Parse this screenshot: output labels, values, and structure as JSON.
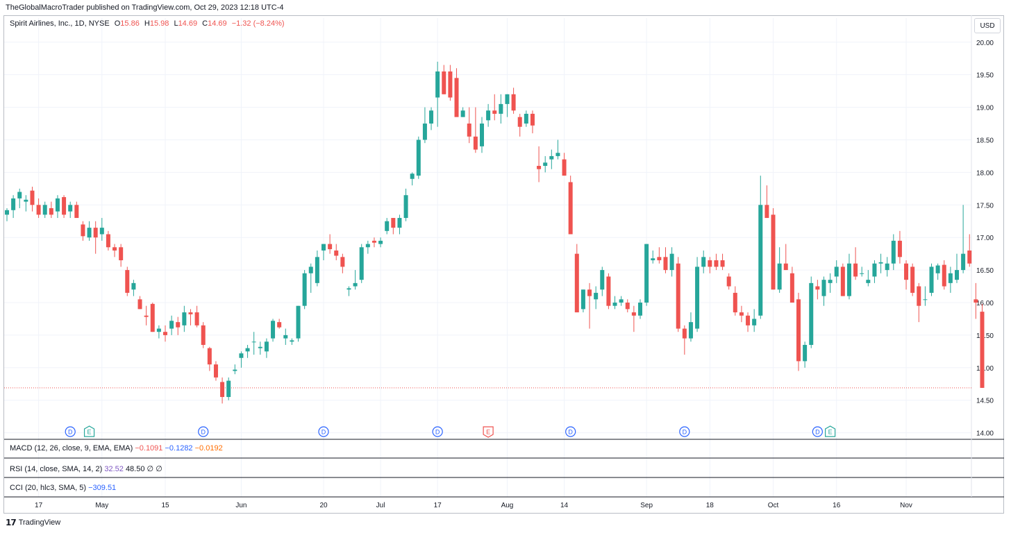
{
  "header": {
    "published": "TheGlobalMacroTrader published on TradingView.com, Oct 29, 2023 12:18 UTC-4"
  },
  "legend": {
    "symbol": "Spirit Airlines, Inc., 1D, NYSE",
    "o_label": "O",
    "o_value": "15.86",
    "h_label": "H",
    "h_value": "15.98",
    "l_label": "L",
    "l_value": "14.69",
    "c_label": "C",
    "c_value": "14.69",
    "change": "−1.32 (−8.24%)"
  },
  "currency": "USD",
  "indicators": {
    "macd": {
      "label": "MACD (12, 26, close, 9, EMA, EMA)",
      "v1": "−0.1091",
      "v2": "−0.1282",
      "v3": "−0.0192"
    },
    "rsi": {
      "label": "RSI (14, close, SMA, 14, 2)",
      "v1": "32.52",
      "v2": "48.50",
      "v3": "∅",
      "v4": "∅"
    },
    "cci": {
      "label": "CCI (20, hlc3, SMA, 5)",
      "v1": "−309.51"
    }
  },
  "footer": {
    "logo_text": "TradingView"
  },
  "colors": {
    "up": "#26a69a",
    "down": "#ef5350",
    "grid": "#f0f3fa",
    "dividend": "#2962ff",
    "earnings_up": "#26a69a",
    "earnings_down": "#ef5350"
  },
  "chart_data": {
    "type": "candlestick",
    "title": "Spirit Airlines, Inc., 1D, NYSE",
    "ylim": [
      13.9,
      20.2
    ],
    "y_ticks": [
      "20.00",
      "19.50",
      "19.00",
      "18.50",
      "18.00",
      "17.50",
      "17.00",
      "16.50",
      "16.00",
      "15.50",
      "15.00",
      "14.50",
      "14.00"
    ],
    "x_ticks": [
      {
        "label": "17",
        "index": 5
      },
      {
        "label": "May",
        "index": 15
      },
      {
        "label": "15",
        "index": 25
      },
      {
        "label": "Jun",
        "index": 37
      },
      {
        "label": "20",
        "index": 50
      },
      {
        "label": "Jul",
        "index": 59
      },
      {
        "label": "17",
        "index": 68
      },
      {
        "label": "Aug",
        "index": 79
      },
      {
        "label": "14",
        "index": 88
      },
      {
        "label": "Sep",
        "index": 101
      },
      {
        "label": "18",
        "index": 111
      },
      {
        "label": "Oct",
        "index": 121
      },
      {
        "label": "16",
        "index": 131
      },
      {
        "label": "Nov",
        "index": 142
      }
    ],
    "last_price": 14.69,
    "candles": [
      [
        17.35,
        17.45,
        17.25,
        17.42
      ],
      [
        17.42,
        17.65,
        17.3,
        17.6
      ],
      [
        17.6,
        17.75,
        17.45,
        17.7
      ],
      [
        17.55,
        17.65,
        17.4,
        17.58
      ],
      [
        17.72,
        17.78,
        17.4,
        17.5
      ],
      [
        17.5,
        17.6,
        17.3,
        17.35
      ],
      [
        17.35,
        17.55,
        17.3,
        17.5
      ],
      [
        17.45,
        17.55,
        17.3,
        17.35
      ],
      [
        17.4,
        17.65,
        17.3,
        17.6
      ],
      [
        17.62,
        17.65,
        17.3,
        17.35
      ],
      [
        17.4,
        17.55,
        17.3,
        17.5
      ],
      [
        17.5,
        17.55,
        17.35,
        17.3
      ],
      [
        17.2,
        17.25,
        16.95,
        17.02
      ],
      [
        17.0,
        17.25,
        16.95,
        17.15
      ],
      [
        17.15,
        17.25,
        16.75,
        17.0
      ],
      [
        17.05,
        17.3,
        16.95,
        17.15
      ],
      [
        17.05,
        17.1,
        16.8,
        16.85
      ],
      [
        16.85,
        16.9,
        16.7,
        16.8
      ],
      [
        16.85,
        16.9,
        16.55,
        16.65
      ],
      [
        16.5,
        16.55,
        16.1,
        16.15
      ],
      [
        16.2,
        16.35,
        16.1,
        16.3
      ],
      [
        16.05,
        16.1,
        15.9,
        15.9
      ],
      [
        15.8,
        15.95,
        15.65,
        15.78
      ],
      [
        15.98,
        16.0,
        15.55,
        15.55
      ],
      [
        15.55,
        15.65,
        15.45,
        15.6
      ],
      [
        15.55,
        15.65,
        15.4,
        15.5
      ],
      [
        15.6,
        15.8,
        15.5,
        15.72
      ],
      [
        15.7,
        15.78,
        15.5,
        15.62
      ],
      [
        15.65,
        15.95,
        15.55,
        15.85
      ],
      [
        15.85,
        15.9,
        15.65,
        15.82
      ],
      [
        15.85,
        15.95,
        15.62,
        15.65
      ],
      [
        15.65,
        15.7,
        15.3,
        15.35
      ],
      [
        15.3,
        15.32,
        14.95,
        15.05
      ],
      [
        15.05,
        15.1,
        14.8,
        14.85
      ],
      [
        14.78,
        14.85,
        14.45,
        14.55
      ],
      [
        14.55,
        14.85,
        14.5,
        14.8
      ],
      [
        14.95,
        15.05,
        14.9,
        14.97
      ],
      [
        15.15,
        15.25,
        15.0,
        15.22
      ],
      [
        15.25,
        15.35,
        15.15,
        15.3
      ],
      [
        15.4,
        15.55,
        15.2,
        15.4
      ],
      [
        15.3,
        15.4,
        15.2,
        15.32
      ],
      [
        15.25,
        15.45,
        15.15,
        15.4
      ],
      [
        15.45,
        15.75,
        15.4,
        15.72
      ],
      [
        15.7,
        15.75,
        15.6,
        15.62
      ],
      [
        15.45,
        15.6,
        15.35,
        15.5
      ],
      [
        15.4,
        15.45,
        15.35,
        15.42
      ],
      [
        15.45,
        15.95,
        15.4,
        15.95
      ],
      [
        15.95,
        16.5,
        15.9,
        16.45
      ],
      [
        16.45,
        16.6,
        16.15,
        16.55
      ],
      [
        16.3,
        16.8,
        16.25,
        16.7
      ],
      [
        16.8,
        16.9,
        16.65,
        16.9
      ],
      [
        16.9,
        17.05,
        16.75,
        16.82
      ],
      [
        16.8,
        16.9,
        16.65,
        16.72
      ],
      [
        16.7,
        16.75,
        16.45,
        16.55
      ],
      [
        16.2,
        16.25,
        16.1,
        16.22
      ],
      [
        16.25,
        16.5,
        16.2,
        16.3
      ],
      [
        16.35,
        16.9,
        16.3,
        16.85
      ],
      [
        16.85,
        16.95,
        16.75,
        16.9
      ],
      [
        16.95,
        17.0,
        16.85,
        16.92
      ],
      [
        16.9,
        17.0,
        16.85,
        16.95
      ],
      [
        17.1,
        17.3,
        17.05,
        17.25
      ],
      [
        17.3,
        17.3,
        17.05,
        17.15
      ],
      [
        17.15,
        17.35,
        17.05,
        17.3
      ],
      [
        17.3,
        17.75,
        17.25,
        17.65
      ],
      [
        17.9,
        18.0,
        17.8,
        17.98
      ],
      [
        17.95,
        18.55,
        17.9,
        18.5
      ],
      [
        18.5,
        19.0,
        18.45,
        18.75
      ],
      [
        18.75,
        19.0,
        18.65,
        18.95
      ],
      [
        19.15,
        19.7,
        18.7,
        19.55
      ],
      [
        19.55,
        19.65,
        19.2,
        19.2
      ],
      [
        19.55,
        19.65,
        19.1,
        19.15
      ],
      [
        19.45,
        19.6,
        18.9,
        18.85
      ],
      [
        18.85,
        19.0,
        18.85,
        18.95
      ],
      [
        18.75,
        19.0,
        18.45,
        18.55
      ],
      [
        18.55,
        19.0,
        18.3,
        18.35
      ],
      [
        18.4,
        18.85,
        18.3,
        18.75
      ],
      [
        18.8,
        19.05,
        18.7,
        18.95
      ],
      [
        18.95,
        19.2,
        18.8,
        18.9
      ],
      [
        18.9,
        19.2,
        18.75,
        19.05
      ],
      [
        19.05,
        19.2,
        18.85,
        19.2
      ],
      [
        19.2,
        19.3,
        18.9,
        18.95
      ],
      [
        18.85,
        18.9,
        18.55,
        18.7
      ],
      [
        18.75,
        18.95,
        18.7,
        18.9
      ],
      [
        18.9,
        18.95,
        18.6,
        18.72
      ],
      [
        18.1,
        18.4,
        17.85,
        18.05
      ],
      [
        18.1,
        18.25,
        18.0,
        18.15
      ],
      [
        18.2,
        18.35,
        18.05,
        18.25
      ],
      [
        18.25,
        18.5,
        18.2,
        18.3
      ],
      [
        18.2,
        18.3,
        17.95,
        17.95
      ],
      [
        17.85,
        17.95,
        17.05,
        17.05
      ],
      [
        16.75,
        16.9,
        15.85,
        15.85
      ],
      [
        15.9,
        16.2,
        15.85,
        16.2
      ],
      [
        16.2,
        16.3,
        15.6,
        16.1
      ],
      [
        16.05,
        16.25,
        15.9,
        16.15
      ],
      [
        16.2,
        16.55,
        16.1,
        16.5
      ],
      [
        16.4,
        16.45,
        15.9,
        15.95
      ],
      [
        15.95,
        16.1,
        15.9,
        16.0
      ],
      [
        16.0,
        16.1,
        15.95,
        16.05
      ],
      [
        16.0,
        16.05,
        15.85,
        15.9
      ],
      [
        15.85,
        15.95,
        15.55,
        15.8
      ],
      [
        15.8,
        16.05,
        15.75,
        16.0
      ],
      [
        16.0,
        16.9,
        15.95,
        16.9
      ],
      [
        16.65,
        16.8,
        16.6,
        16.68
      ],
      [
        16.7,
        16.85,
        16.6,
        16.65
      ],
      [
        16.7,
        16.85,
        16.45,
        16.5
      ],
      [
        16.5,
        16.85,
        16.4,
        16.75
      ],
      [
        16.6,
        16.7,
        15.55,
        15.6
      ],
      [
        15.6,
        15.65,
        15.2,
        15.45
      ],
      [
        15.45,
        15.85,
        15.4,
        15.7
      ],
      [
        15.6,
        16.7,
        15.55,
        16.55
      ],
      [
        16.55,
        16.8,
        16.45,
        16.7
      ],
      [
        16.65,
        16.7,
        16.45,
        16.55
      ],
      [
        16.65,
        16.75,
        16.5,
        16.55
      ],
      [
        16.65,
        16.75,
        16.5,
        16.55
      ],
      [
        16.4,
        16.45,
        16.2,
        16.25
      ],
      [
        16.15,
        16.25,
        15.8,
        15.85
      ],
      [
        15.85,
        15.95,
        15.7,
        15.8
      ],
      [
        15.8,
        15.85,
        15.55,
        15.65
      ],
      [
        15.65,
        15.9,
        15.55,
        15.75
      ],
      [
        15.8,
        17.95,
        15.75,
        17.5
      ],
      [
        17.5,
        17.8,
        17.3,
        17.3
      ],
      [
        17.35,
        17.45,
        16.2,
        16.2
      ],
      [
        16.2,
        16.85,
        16.15,
        16.6
      ],
      [
        16.6,
        16.9,
        16.5,
        16.5
      ],
      [
        16.45,
        16.55,
        16.0,
        16.0
      ],
      [
        16.05,
        16.15,
        14.95,
        15.1
      ],
      [
        15.1,
        15.4,
        15.0,
        15.35
      ],
      [
        15.35,
        16.4,
        15.3,
        16.3
      ],
      [
        16.25,
        16.35,
        16.05,
        16.2
      ],
      [
        16.1,
        16.4,
        15.95,
        16.35
      ],
      [
        16.3,
        16.45,
        16.15,
        16.35
      ],
      [
        16.4,
        16.65,
        16.3,
        16.55
      ],
      [
        16.55,
        16.6,
        16.1,
        16.1
      ],
      [
        16.1,
        16.75,
        16.05,
        16.6
      ],
      [
        16.6,
        16.85,
        16.35,
        16.4
      ],
      [
        16.45,
        16.55,
        16.4,
        16.45
      ],
      [
        16.3,
        16.5,
        16.25,
        16.35
      ],
      [
        16.4,
        16.65,
        16.3,
        16.6
      ],
      [
        16.6,
        16.75,
        16.45,
        16.62
      ],
      [
        16.5,
        16.7,
        16.4,
        16.6
      ],
      [
        16.6,
        17.05,
        16.5,
        16.95
      ],
      [
        16.95,
        17.1,
        16.6,
        16.7
      ],
      [
        16.6,
        16.65,
        16.2,
        16.35
      ],
      [
        16.55,
        16.6,
        16.1,
        16.15
      ],
      [
        16.25,
        16.3,
        15.7,
        15.95
      ],
      [
        16.05,
        16.25,
        15.95,
        16.05
      ],
      [
        16.15,
        16.6,
        16.1,
        16.55
      ],
      [
        16.45,
        16.6,
        16.35,
        16.57
      ],
      [
        16.58,
        16.65,
        16.2,
        16.25
      ],
      [
        16.3,
        16.55,
        16.15,
        16.45
      ],
      [
        16.35,
        16.75,
        16.3,
        16.5
      ],
      [
        16.5,
        17.5,
        16.45,
        16.75
      ],
      [
        16.8,
        17.05,
        16.55,
        16.6
      ],
      [
        16.05,
        16.3,
        15.75,
        16.0
      ],
      [
        15.86,
        15.98,
        14.69,
        14.69
      ]
    ],
    "events": [
      {
        "type": "D",
        "index": 10,
        "kind": "dividend"
      },
      {
        "type": "E",
        "index": 13,
        "kind": "earnings_up"
      },
      {
        "type": "D",
        "index": 31,
        "kind": "dividend"
      },
      {
        "type": "D",
        "index": 50,
        "kind": "dividend"
      },
      {
        "type": "D",
        "index": 68,
        "kind": "dividend"
      },
      {
        "type": "E",
        "index": 76,
        "kind": "earnings_down"
      },
      {
        "type": "D",
        "index": 89,
        "kind": "dividend"
      },
      {
        "type": "D",
        "index": 107,
        "kind": "dividend"
      },
      {
        "type": "D",
        "index": 128,
        "kind": "dividend"
      },
      {
        "type": "E",
        "index": 130,
        "kind": "earnings_up"
      }
    ]
  }
}
